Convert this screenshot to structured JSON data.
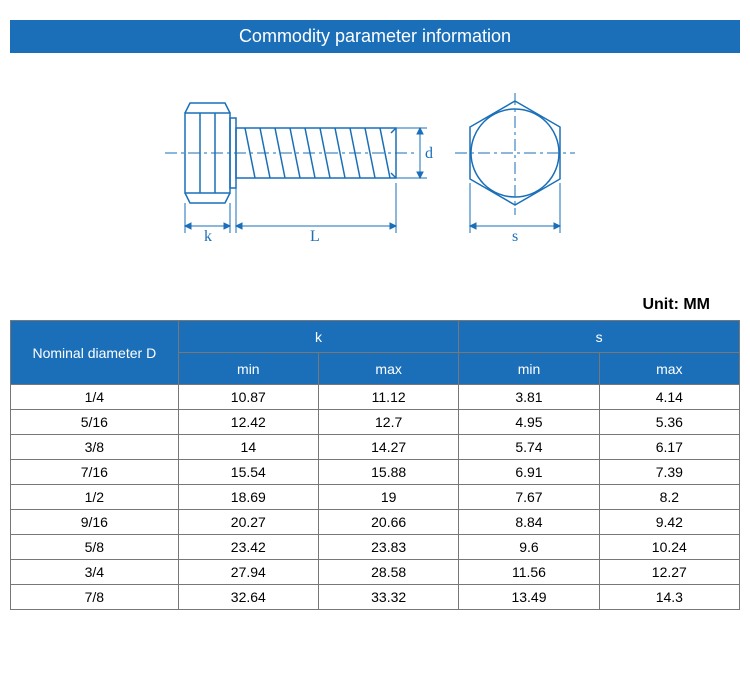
{
  "header": {
    "title": "Commodity parameter information"
  },
  "unit": {
    "label": "Unit: MM"
  },
  "diagram": {
    "stroke": "#1a6fb8",
    "dash_stroke": "#1a6fb8",
    "text_fill": "#1a6fb8",
    "labels": {
      "k": "k",
      "L": "L",
      "d": "d",
      "s": "s"
    }
  },
  "table": {
    "header_bg": "#1a6fb8",
    "header_fg": "#ffffff",
    "border_color": "#777777",
    "cell_bg": "#ffffff",
    "columns": {
      "nominal": "Nominal diameter D",
      "k": "k",
      "s": "s",
      "min": "min",
      "max": "max"
    },
    "col_widths_pct": [
      23,
      19.25,
      19.25,
      19.25,
      19.25
    ],
    "rows": [
      {
        "d": "1/4",
        "k_min": "10.87",
        "k_max": "11.12",
        "s_min": "3.81",
        "s_max": "4.14"
      },
      {
        "d": "5/16",
        "k_min": "12.42",
        "k_max": "12.7",
        "s_min": "4.95",
        "s_max": "5.36"
      },
      {
        "d": "3/8",
        "k_min": "14",
        "k_max": "14.27",
        "s_min": "5.74",
        "s_max": "6.17"
      },
      {
        "d": "7/16",
        "k_min": "15.54",
        "k_max": "15.88",
        "s_min": "6.91",
        "s_max": "7.39"
      },
      {
        "d": "1/2",
        "k_min": "18.69",
        "k_max": "19",
        "s_min": "7.67",
        "s_max": "8.2"
      },
      {
        "d": "9/16",
        "k_min": "20.27",
        "k_max": "20.66",
        "s_min": "8.84",
        "s_max": "9.42"
      },
      {
        "d": "5/8",
        "k_min": "23.42",
        "k_max": "23.83",
        "s_min": "9.6",
        "s_max": "10.24"
      },
      {
        "d": "3/4",
        "k_min": "27.94",
        "k_max": "28.58",
        "s_min": "11.56",
        "s_max": "12.27"
      },
      {
        "d": "7/8",
        "k_min": "32.64",
        "k_max": "33.32",
        "s_min": "13.49",
        "s_max": "14.3"
      }
    ]
  }
}
